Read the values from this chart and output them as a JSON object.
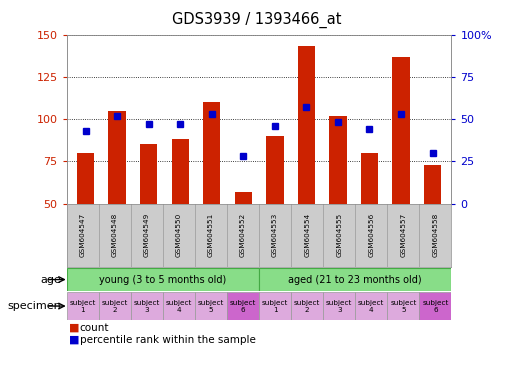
{
  "title": "GDS3939 / 1393466_at",
  "samples": [
    "GSM604547",
    "GSM604548",
    "GSM604549",
    "GSM604550",
    "GSM604551",
    "GSM604552",
    "GSM604553",
    "GSM604554",
    "GSM604555",
    "GSM604556",
    "GSM604557",
    "GSM604558"
  ],
  "counts": [
    80,
    105,
    85,
    88,
    110,
    57,
    90,
    143,
    102,
    80,
    137,
    73
  ],
  "percentiles": [
    43,
    52,
    47,
    47,
    53,
    28,
    46,
    57,
    48,
    44,
    53,
    30
  ],
  "ylim_left": [
    50,
    150
  ],
  "ylim_right": [
    0,
    100
  ],
  "yticks_left": [
    50,
    75,
    100,
    125,
    150
  ],
  "yticks_right": [
    0,
    25,
    50,
    75,
    100
  ],
  "ytick_labels_right": [
    "0",
    "25",
    "50",
    "75",
    "100%"
  ],
  "bar_color": "#cc2200",
  "dot_color": "#0000cc",
  "bg_color": "#ffffff",
  "tick_color_left": "#cc2200",
  "tick_color_right": "#0000cc",
  "age_group_color": "#88dd88",
  "age_group_edge": "#44aa44",
  "age_labels": [
    "young (3 to 5 months old)",
    "aged (21 to 23 months old)"
  ],
  "specimen_colors_light": "#ddaadd",
  "specimen_colors_dark": "#cc66cc",
  "specimen_dark_indices": [
    5,
    11
  ],
  "specimen_labels": [
    "subject\n1",
    "subject\n2",
    "subject\n3",
    "subject\n4",
    "subject\n5",
    "subject\n6",
    "subject\n1",
    "subject\n2",
    "subject\n3",
    "subject\n4",
    "subject\n5",
    "subject\n6"
  ],
  "sample_bg_color": "#cccccc",
  "legend_count_label": "count",
  "legend_pct_label": "percentile rank within the sample"
}
